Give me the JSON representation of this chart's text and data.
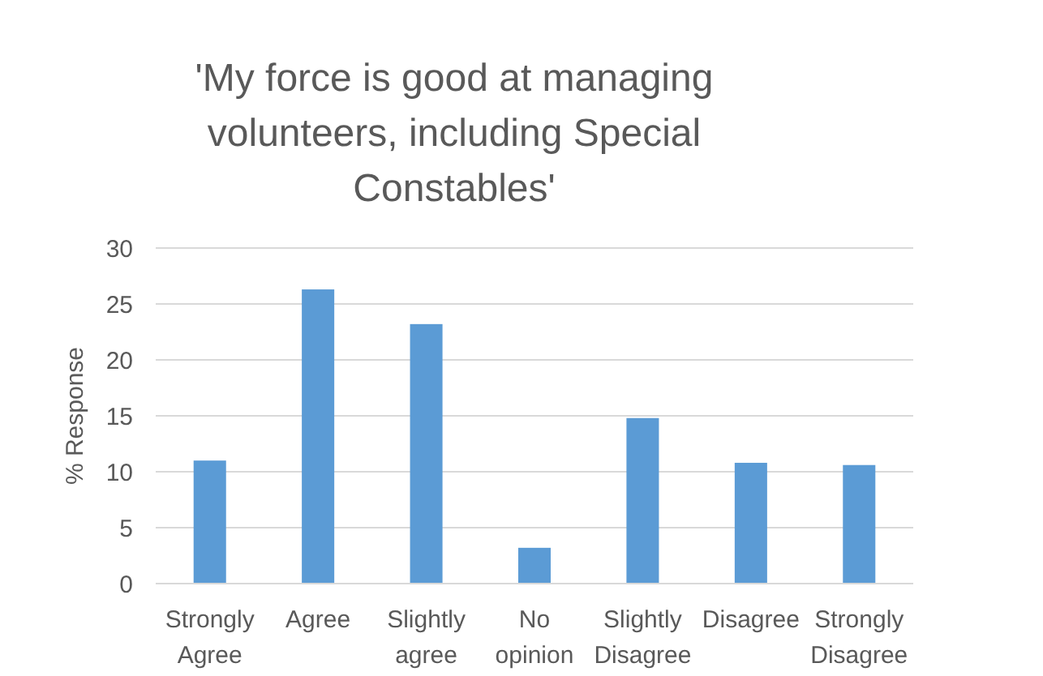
{
  "chart_data": {
    "type": "bar",
    "title": "'My force is good at managing volunteers, including Special Constables'",
    "ylabel": "% Response",
    "categories": [
      "Strongly Agree",
      "Agree",
      "Slightly agree",
      "No opinion",
      "Slightly Disagree",
      "Disagree",
      "Strongly Disagree"
    ],
    "values": [
      11.0,
      26.3,
      23.2,
      3.2,
      14.8,
      10.8,
      10.6
    ],
    "color": "#5b9bd5",
    "ylim": [
      0,
      30
    ],
    "yticks": [
      0,
      5,
      10,
      15,
      20,
      25,
      30
    ],
    "grid": "y"
  }
}
